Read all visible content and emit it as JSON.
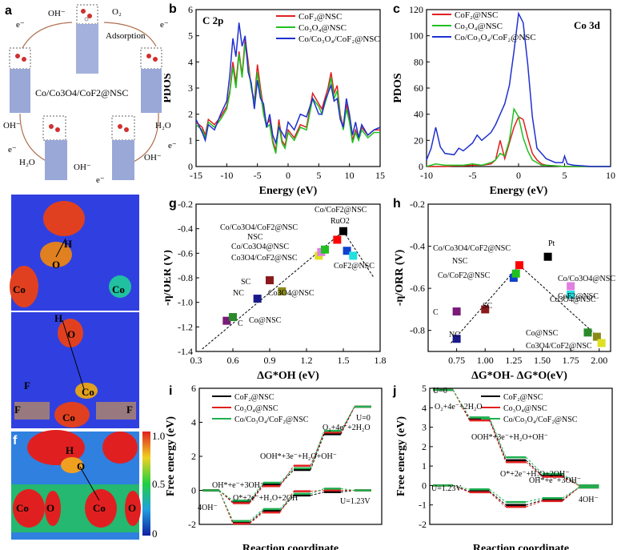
{
  "panel_labels": {
    "a": "a",
    "b": "b",
    "c": "c",
    "d": "d",
    "e": "e",
    "f": "f",
    "g": "g",
    "h": "h",
    "i": "i",
    "j": "j"
  },
  "panel_a": {
    "center_label": "Co/Co3O4/CoF2@NSC",
    "species": {
      "oh_top": "OH⁻",
      "o2": "O₂",
      "adsorption": "Adsorption",
      "oh_left": "OH⁻",
      "h2o_right": "H₂O",
      "h2o_bottom": "H₂O",
      "oh_bottom": "OH⁻",
      "oh_right": "OH⁻",
      "e": "e⁻"
    }
  },
  "panel_d": {
    "labels": [
      "H",
      "O",
      "Co",
      "Co"
    ]
  },
  "panel_e": {
    "labels": [
      "H",
      "O",
      "Co",
      "F",
      "F",
      "Co",
      "F"
    ]
  },
  "panel_f": {
    "labels": [
      "H",
      "O",
      "Co",
      "O",
      "Co",
      "O"
    ],
    "colorbar_ticks": [
      "1.0",
      "0.5",
      "0"
    ]
  },
  "chart_data": [
    {
      "id": "b",
      "type": "line",
      "title": "C 2p",
      "xlabel": "Energy (eV)",
      "ylabel": "PDOS",
      "xlim": [
        -15,
        15
      ],
      "ylim": [
        0,
        6
      ],
      "xticks": [
        "-15",
        "-10",
        "-5",
        "0",
        "5",
        "10",
        "15"
      ],
      "yticks": [
        "0",
        "1",
        "2",
        "3",
        "4",
        "5",
        "6"
      ],
      "series": [
        {
          "name": "CoF2@NSC",
          "color": "#e02020",
          "x": [
            -15,
            -14,
            -13.5,
            -13,
            -12,
            -11,
            -10,
            -9.5,
            -9,
            -8.5,
            -8,
            -7.5,
            -7,
            -6.5,
            -6,
            -5.5,
            -5,
            -4.5,
            -4,
            -3.5,
            -3,
            -2.5,
            -2,
            -1.5,
            -1,
            -0.5,
            0,
            1,
            2,
            3,
            4,
            5,
            5.5,
            6,
            6.5,
            7,
            7.5,
            8,
            8.5,
            9,
            9.5,
            10,
            10.5,
            11,
            11.5,
            12,
            13,
            14,
            15
          ],
          "y": [
            1.7,
            1.5,
            1.2,
            1.8,
            1.6,
            1.9,
            2.3,
            2.9,
            4.0,
            3.2,
            4.4,
            3.5,
            4.9,
            4.0,
            3.0,
            2.5,
            3.9,
            3.0,
            2.2,
            1.6,
            1.8,
            1.0,
            0.6,
            1.8,
            1.0,
            0.8,
            1.4,
            1.1,
            1.6,
            1.5,
            2.8,
            2.4,
            2.2,
            2.6,
            3.0,
            3.6,
            2.8,
            3.1,
            2.0,
            1.5,
            2.4,
            1.8,
            1.0,
            1.4,
            1.1,
            1.5,
            1.2,
            1.4,
            1.4
          ]
        },
        {
          "name": "Co3O4@NSC",
          "color": "#20c020",
          "x": [
            -15,
            -14,
            -13.5,
            -13,
            -12,
            -11,
            -10,
            -9.5,
            -9,
            -8.5,
            -8,
            -7.5,
            -7,
            -6.5,
            -6,
            -5.5,
            -5,
            -4.5,
            -4,
            -3.5,
            -3,
            -2.5,
            -2,
            -1.5,
            -1,
            -0.5,
            0,
            1,
            2,
            3,
            4,
            5,
            5.5,
            6,
            6.5,
            7,
            7.5,
            8,
            8.5,
            9,
            9.5,
            10,
            10.5,
            11,
            11.5,
            12,
            13,
            14,
            15
          ],
          "y": [
            1.6,
            1.4,
            1.1,
            1.7,
            1.5,
            1.8,
            2.2,
            2.8,
            3.8,
            3.0,
            4.3,
            3.4,
            4.7,
            3.8,
            3.0,
            2.4,
            3.6,
            2.8,
            2.0,
            1.5,
            1.6,
            0.9,
            0.5,
            1.6,
            0.9,
            0.7,
            1.3,
            1.0,
            1.5,
            1.4,
            2.6,
            2.3,
            2.0,
            2.4,
            2.8,
            3.4,
            2.6,
            2.9,
            1.9,
            1.4,
            2.2,
            1.7,
            0.9,
            1.3,
            1.0,
            1.4,
            1.1,
            1.3,
            1.3
          ]
        },
        {
          "name": "Co/Co3O4/CoF2@NSC",
          "color": "#2030d0",
          "x": [
            -15,
            -14,
            -13.5,
            -13,
            -12,
            -11,
            -10,
            -9.5,
            -9,
            -8.5,
            -8,
            -7.5,
            -7,
            -6.5,
            -6,
            -5.5,
            -5,
            -4.5,
            -4,
            -3.5,
            -3,
            -2.5,
            -2,
            -1.5,
            -1,
            -0.5,
            0,
            1,
            2,
            3,
            4,
            5,
            5.5,
            6,
            6.5,
            7,
            7.5,
            8,
            8.5,
            9,
            9.5,
            10,
            10.5,
            11,
            11.5,
            12,
            13,
            14,
            15
          ],
          "y": [
            1.8,
            1.3,
            1.0,
            1.6,
            1.4,
            2.0,
            2.5,
            3.5,
            4.9,
            4.2,
            5.5,
            4.6,
            5.0,
            3.6,
            3.2,
            2.2,
            3.3,
            2.6,
            2.4,
            1.5,
            2.0,
            1.2,
            0.9,
            1.5,
            1.3,
            1.1,
            1.7,
            1.4,
            2.0,
            1.9,
            2.6,
            2.0,
            2.0,
            2.5,
            2.8,
            3.1,
            2.5,
            2.6,
            1.8,
            1.5,
            2.6,
            2.0,
            1.2,
            1.7,
            1.1,
            1.6,
            1.2,
            1.4,
            1.5
          ]
        }
      ]
    },
    {
      "id": "c",
      "type": "line",
      "title": "Co 3d",
      "xlabel": "Energy (eV)",
      "ylabel": "PDOS",
      "xlim": [
        -10,
        10
      ],
      "ylim": [
        0,
        120
      ],
      "xticks": [
        "-10",
        "-5",
        "0",
        "5",
        "10"
      ],
      "yticks": [
        "0",
        "20",
        "40",
        "60",
        "80",
        "100",
        "120"
      ],
      "series": [
        {
          "name": "CoF2@NSC",
          "color": "#e02020",
          "x": [
            -10,
            -9,
            -8,
            -7,
            -6,
            -5,
            -4,
            -3,
            -2.5,
            -2,
            -1.5,
            -1,
            -0.5,
            0,
            0.5,
            1,
            1.5,
            2,
            2.5,
            3,
            4,
            5,
            6,
            8,
            10
          ],
          "y": [
            0,
            0,
            0,
            0.5,
            0.5,
            1,
            1,
            2,
            5,
            20,
            6,
            18,
            30,
            38,
            36,
            22,
            10,
            5,
            2,
            1,
            0.5,
            0,
            0,
            0,
            0
          ]
        },
        {
          "name": "Co3O4@NSC",
          "color": "#20c020",
          "x": [
            -10,
            -9,
            -8,
            -7,
            -6,
            -5,
            -4,
            -3,
            -2.5,
            -2,
            -1.5,
            -1,
            -0.5,
            0,
            0.5,
            1,
            1.5,
            2,
            2.5,
            3,
            4,
            5,
            6,
            8,
            10
          ],
          "y": [
            0,
            2,
            1,
            1,
            1,
            2,
            1,
            3,
            5,
            10,
            8,
            20,
            44,
            38,
            22,
            12,
            5,
            3,
            1,
            1,
            0.5,
            0,
            0,
            0,
            0
          ]
        },
        {
          "name": "Co/Co3O4/CoF2@NSC",
          "color": "#2030d0",
          "x": [
            -10,
            -9.5,
            -9,
            -8.5,
            -8,
            -7,
            -6.5,
            -6,
            -5,
            -4.5,
            -4,
            -3,
            -2.5,
            -2,
            -1.5,
            -1,
            -0.5,
            0,
            0.5,
            1,
            1.5,
            2,
            3,
            4,
            4.8,
            5,
            5.3,
            6,
            8,
            10
          ],
          "y": [
            5,
            14,
            30,
            15,
            10,
            9,
            14,
            12,
            18,
            24,
            20,
            26,
            32,
            40,
            48,
            62,
            88,
            117,
            110,
            78,
            38,
            14,
            6,
            3,
            3,
            8,
            2,
            1,
            0,
            0
          ]
        }
      ]
    },
    {
      "id": "g",
      "type": "scatter",
      "xlabel": "ΔG*OH (eV)",
      "ylabel": "-η/OER (V)",
      "xlim": [
        0.3,
        1.8
      ],
      "ylim": [
        -1.4,
        -0.2
      ],
      "xticks": [
        "0.3",
        "0.6",
        "0.9",
        "1.2",
        "1.5",
        "1.8"
      ],
      "yticks": [
        "-0.2",
        "-0.4",
        "-0.6",
        "-0.8",
        "-1.0",
        "-1.2",
        "-1.4"
      ],
      "points": [
        {
          "label": "C",
          "x": 0.55,
          "y": -1.15,
          "color": "#7a1a7a"
        },
        {
          "label": "Co@NSC",
          "x": 0.6,
          "y": -1.12,
          "color": "#2a8a2a"
        },
        {
          "label": "NC",
          "x": 0.8,
          "y": -0.97,
          "color": "#1a1a8a"
        },
        {
          "label": "SC",
          "x": 0.9,
          "y": -0.82,
          "color": "#8a1a1a"
        },
        {
          "label": "Co3O4@NSC",
          "x": 1.0,
          "y": -0.91,
          "color": "#8a8a1a"
        },
        {
          "label": "Co3O4/CoF2@NSC",
          "x": 1.3,
          "y": -0.62,
          "color": "#e0e020"
        },
        {
          "label": "Co/Co3O4@NSC",
          "x": 1.32,
          "y": -0.59,
          "color": "#e080e0"
        },
        {
          "label": "NSC",
          "x": 1.35,
          "y": -0.57,
          "color": "#20c020"
        },
        {
          "label": "Co/Co3O4/CoF2@NSC",
          "x": 1.45,
          "y": -0.49,
          "color": "#ff0000"
        },
        {
          "label": "RuO2",
          "x": 1.5,
          "y": -0.42,
          "color": "#000000"
        },
        {
          "label": "Co/CoF2@NSC",
          "x": 1.53,
          "y": -0.58,
          "color": "#1040d0"
        },
        {
          "label": "CoF2@NSC",
          "x": 1.58,
          "y": -0.62,
          "color": "#20e0e0"
        }
      ],
      "annotations": [
        "Co/CoF2@NSC",
        "RuO2",
        "Co/Co3O4/CoF2@NSC",
        "NSC",
        "Co/Co3O4@NSC",
        "Co3O4/CoF2@NSC",
        "CoF2@NSC",
        "SC",
        "NC",
        "Co3O4@NSC",
        "C",
        "Co@NSC"
      ]
    },
    {
      "id": "h",
      "type": "scatter",
      "xlabel": "ΔG*OH- ΔG*O(eV)",
      "ylabel": "-η/ORR (V)",
      "xlim": [
        0.5,
        2.1
      ],
      "ylim": [
        -0.9,
        -0.2
      ],
      "xticks": [
        "0.75",
        "1.00",
        "1.25",
        "1.50",
        "1.75",
        "2.00"
      ],
      "yticks": [
        "-0.2",
        "-0.4",
        "-0.6",
        "-0.8"
      ],
      "points": [
        {
          "label": "NC",
          "x": 0.75,
          "y": -0.84,
          "color": "#1a1a8a"
        },
        {
          "label": "C",
          "x": 0.75,
          "y": -0.71,
          "color": "#7a1a7a"
        },
        {
          "label": "SC",
          "x": 1.0,
          "y": -0.7,
          "color": "#8a1a1a"
        },
        {
          "label": "Co/CoF2@NSC",
          "x": 1.25,
          "y": -0.55,
          "color": "#1040d0"
        },
        {
          "label": "NSC",
          "x": 1.27,
          "y": -0.53,
          "color": "#20c020"
        },
        {
          "label": "Co/Co3O4/CoF2@NSC",
          "x": 1.3,
          "y": -0.49,
          "color": "#ff0000"
        },
        {
          "label": "Pt",
          "x": 1.55,
          "y": -0.45,
          "color": "#000000"
        },
        {
          "label": "Co/Co3O4@NSC",
          "x": 1.75,
          "y": -0.59,
          "color": "#e080e0"
        },
        {
          "label": "CoF2@NSC",
          "x": 1.75,
          "y": -0.63,
          "color": "#20e0e0"
        },
        {
          "label": "Co@NSC",
          "x": 1.9,
          "y": -0.81,
          "color": "#2a8a2a"
        },
        {
          "label": "Co3O4@NSC",
          "x": 1.98,
          "y": -0.83,
          "color": "#8a8a1a"
        },
        {
          "label": "Co3O4/CoF2@NSC",
          "x": 2.02,
          "y": -0.86,
          "color": "#e0e020"
        }
      ],
      "annotations": [
        "Pt",
        "Co/Co3O4/CoF2@NSC",
        "NSC",
        "Co/CoF2@NSC",
        "Co/Co3O4@NSC",
        "CoF2@NSC",
        "Co3O4@NSC",
        "Co@NSC",
        "Co3O4/CoF2@NSC",
        "C",
        "SC",
        "NC"
      ]
    },
    {
      "id": "i",
      "type": "line",
      "xlabel": "Reaction coordinate",
      "ylabel": "Free energy (eV)",
      "ylim": [
        -2,
        6
      ],
      "yticks": [
        "-2",
        "0",
        "2",
        "4",
        "6"
      ],
      "series": [
        {
          "name": "CoF2@NSC",
          "color": "#000000",
          "values": [
            0,
            -0.7,
            0.35,
            1.2,
            3.3,
            4.92
          ]
        },
        {
          "name": "Co3O4@NSC",
          "color": "#e02020",
          "values": [
            0,
            -0.75,
            0.25,
            1.45,
            3.4,
            4.92
          ]
        },
        {
          "name": "Co/Co3O4/CoF2@NSC",
          "color": "#20b050",
          "values": [
            0,
            -0.6,
            0.45,
            1.3,
            3.5,
            4.92
          ]
        }
      ],
      "u1_values": [
        0,
        -1.9,
        -1.2,
        -0.3,
        -0.1,
        0
      ],
      "annotations": [
        "U=0",
        "O₂+4e⁻+2H₂O",
        "OOH*+3e⁻+H₂O+OH⁻",
        "O*+2e⁻+H₂O+2OH⁻",
        "OH*+e⁻+3OH⁻",
        "4OH⁻",
        "U=1.23V"
      ]
    },
    {
      "id": "j",
      "type": "line",
      "xlabel": "Reaction coordinate",
      "ylabel": "Free energy (eV)",
      "ylim": [
        -2,
        5
      ],
      "yticks": [
        "-2",
        "-1",
        "0",
        "1",
        "2",
        "3",
        "4",
        "5"
      ],
      "series": [
        {
          "name": "CoF2@NSC",
          "color": "#000000",
          "values": [
            4.92,
            3.4,
            1.3,
            0.5,
            0
          ]
        },
        {
          "name": "Co3O4@NSC",
          "color": "#e02020",
          "values": [
            4.92,
            3.35,
            1.2,
            0.45,
            0
          ]
        },
        {
          "name": "Co/Co3O4/CoF2@NSC",
          "color": "#20b050",
          "values": [
            4.92,
            3.5,
            1.45,
            0.6,
            0
          ]
        }
      ],
      "u1_values": [
        0,
        -0.3,
        -1.0,
        -0.75,
        -0.1
      ],
      "annotations": [
        "U=0",
        "O₂+4e⁻+2H₂O",
        "OOH*+3e⁻+H₂O+OH⁻",
        "O*+2e⁻+H₂O+2OH⁻",
        "OH*+e⁻+3OH⁻",
        "4OH⁻",
        "U=1.23V"
      ]
    }
  ],
  "legend": [
    "CoF₂@NSC",
    "Co₃O₄@NSC",
    "Co/Co₃O₄/CoF₂@NSC"
  ]
}
